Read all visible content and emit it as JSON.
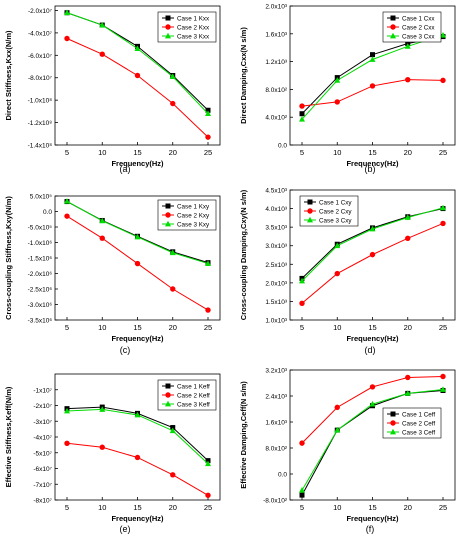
{
  "figure": {
    "panels": [
      "(a)",
      "(b)",
      "(c)",
      "(d)",
      "(e)",
      "(f)"
    ]
  },
  "colors": {
    "case1": "#000000",
    "case2": "#ff0000",
    "case3": "#00dd00"
  },
  "chart_data": [
    {
      "type": "line",
      "label": "(a)",
      "xlabel": "Frequency(Hz)",
      "ylabel": "Direct Stiffness,Kxx(N/m)",
      "x": [
        5,
        10,
        15,
        20,
        25
      ],
      "xticks": [
        "5",
        "10",
        "15",
        "20",
        "25"
      ],
      "ylim": [
        -140000000.0,
        -16000000.0
      ],
      "yticks": [
        -20000000.0,
        -40000000.0,
        -60000000.0,
        -80000000.0,
        -100000000.0,
        -120000000.0,
        -140000000.0
      ],
      "ytick_labels": [
        "-2.0x10⁷",
        "-4.0x10⁷",
        "-6.0x10⁷",
        "-8.0x10⁷",
        "-1.0x10⁸",
        "-1.2x10⁸",
        "-1.4x10⁸"
      ],
      "legend_position": "top-right",
      "series": [
        {
          "name": "Case 1 Kxx",
          "values": [
            -22000000.0,
            -33000000.0,
            -52000000.0,
            -78000000.0,
            -109000000.0
          ]
        },
        {
          "name": "Case 2 Kxx",
          "values": [
            -45000000.0,
            -59000000.0,
            -78000000.0,
            -103000000.0,
            -133000000.0
          ]
        },
        {
          "name": "Case 3 Kxx",
          "values": [
            -22000000.0,
            -33000000.0,
            -54000000.0,
            -79000000.0,
            -112000000.0
          ]
        }
      ]
    },
    {
      "type": "line",
      "label": "(b)",
      "xlabel": "Frequency(Hz)",
      "ylabel": "Direct Damping,Cxx(N s/m)",
      "x": [
        5,
        10,
        15,
        20,
        25
      ],
      "xticks": [
        "5",
        "10",
        "15",
        "20",
        "25"
      ],
      "ylim": [
        0,
        2000
      ],
      "yticks": [
        0,
        400,
        800,
        1200,
        1600,
        2000
      ],
      "ytick_labels": [
        "0.0",
        "4.0x10²",
        "8.0x10²",
        "1.2x10³",
        "1.6x10³",
        "2.0x10³"
      ],
      "legend_position": "top-right",
      "series": [
        {
          "name": "Case 1 Cxx",
          "values": [
            450,
            970,
            1300,
            1460,
            1560
          ]
        },
        {
          "name": "Case 2 Cxx",
          "values": [
            560,
            620,
            850,
            940,
            930
          ]
        },
        {
          "name": "Case 3 Cxx",
          "values": [
            370,
            930,
            1230,
            1420,
            1580
          ]
        }
      ]
    },
    {
      "type": "line",
      "label": "(c)",
      "xlabel": "Frequency(Hz)",
      "ylabel": "Cross-coupling Stiffness,Kxy(N/m)",
      "x": [
        5,
        10,
        15,
        20,
        25
      ],
      "xticks": [
        "5",
        "10",
        "15",
        "20",
        "25"
      ],
      "ylim": [
        -3500000.0,
        500000.0
      ],
      "yticks": [
        500000.0,
        0,
        -500000.0,
        -1000000.0,
        -1500000.0,
        -2000000.0,
        -2500000.0,
        -3000000.0,
        -3500000.0
      ],
      "ytick_labels": [
        "5.0x10⁵",
        "0.0",
        "-5.0x10⁵",
        "-1.0x10⁶",
        "-1.5x10⁶",
        "-2.0x10⁶",
        "-2.5x10⁶",
        "-3.0x10⁶",
        "-3.5x10⁶"
      ],
      "legend_position": "top-right",
      "series": [
        {
          "name": "Case 1 Kxy",
          "values": [
            320000.0,
            -290000.0,
            -800000.0,
            -1300000.0,
            -1650000.0
          ]
        },
        {
          "name": "Case 2 Kxy",
          "values": [
            -150000.0,
            -860000.0,
            -1680000.0,
            -2500000.0,
            -3180000.0
          ]
        },
        {
          "name": "Case 3 Kxy",
          "values": [
            330000.0,
            -300000.0,
            -820000.0,
            -1330000.0,
            -1680000.0
          ]
        }
      ]
    },
    {
      "type": "line",
      "label": "(d)",
      "xlabel": "Frequency(Hz)",
      "ylabel": "Cross-coupling Damping,Cxy(N s/m)",
      "x": [
        5,
        10,
        15,
        20,
        25
      ],
      "xticks": [
        "5",
        "10",
        "15",
        "20",
        "25"
      ],
      "ylim": [
        1000,
        4500
      ],
      "yticks": [
        1000,
        1500,
        2000,
        2500,
        3000,
        3500,
        4000,
        4500
      ],
      "ytick_labels": [
        "1.0x10³",
        "1.5x10³",
        "2.0x10³",
        "2.5x10³",
        "3.0x10³",
        "3.5x10³",
        "4.0x10³",
        "4.5x10³"
      ],
      "legend_position": "top-left",
      "series": [
        {
          "name": "Case 1 Cxy",
          "values": [
            2120,
            3040,
            3480,
            3780,
            4000
          ]
        },
        {
          "name": "Case 2 Cxy",
          "values": [
            1450,
            2250,
            2760,
            3200,
            3600
          ]
        },
        {
          "name": "Case 3 Cxy",
          "values": [
            2050,
            3000,
            3450,
            3760,
            4020
          ]
        }
      ]
    },
    {
      "type": "line",
      "label": "(e)",
      "xlabel": "Frequency(Hz)",
      "ylabel": "Effective Stiffness,Keff(N/m)",
      "x": [
        5,
        10,
        15,
        20,
        25
      ],
      "xticks": [
        "5",
        "10",
        "15",
        "20",
        "25"
      ],
      "ylim": [
        -80000000.0,
        0
      ],
      "yticks": [
        -10000000.0,
        -20000000.0,
        -30000000.0,
        -40000000.0,
        -50000000.0,
        -60000000.0,
        -70000000.0,
        -80000000.0
      ],
      "ytick_labels": [
        "-1x10⁷",
        "-2x10⁷",
        "-3x10⁷",
        "-4x10⁷",
        "-5x10⁷",
        "-6x10⁷",
        "-7x10⁷",
        "-8x10⁷"
      ],
      "legend_position": "top-right",
      "series": [
        {
          "name": "Case 1 Keff",
          "values": [
            -22000000.0,
            -21000000.0,
            -25000000.0,
            -34000000.0,
            -55000000.0
          ]
        },
        {
          "name": "Case 2 Keff",
          "values": [
            -44000000.0,
            -46500000.0,
            -53000000.0,
            -64000000.0,
            -77000000.0
          ]
        },
        {
          "name": "Case 3 Keff",
          "values": [
            -23500000.0,
            -22500000.0,
            -26000000.0,
            -36000000.0,
            -57000000.0
          ]
        }
      ]
    },
    {
      "type": "line",
      "label": "(f)",
      "xlabel": "Frequency(Hz)",
      "ylabel": "Effective Damping,Ceff(N s/m)",
      "x": [
        5,
        10,
        15,
        20,
        25
      ],
      "xticks": [
        "5",
        "10",
        "15",
        "20",
        "25"
      ],
      "ylim": [
        -800,
        3200
      ],
      "yticks": [
        -800,
        0,
        800,
        1600,
        2400,
        3200
      ],
      "ytick_labels": [
        "-8.0x10²",
        "0.0",
        "8.0x10²",
        "1.6x10³",
        "2.4x10³",
        "3.2x10³"
      ],
      "legend_position": "center-right",
      "series": [
        {
          "name": "Case 1 Ceff",
          "values": [
            -650,
            1350,
            2100,
            2480,
            2570
          ]
        },
        {
          "name": "Case 2 Ceff",
          "values": [
            950,
            2050,
            2680,
            2970,
            3000
          ]
        },
        {
          "name": "Case 3 Ceff",
          "values": [
            -500,
            1350,
            2150,
            2480,
            2600
          ]
        }
      ]
    }
  ]
}
